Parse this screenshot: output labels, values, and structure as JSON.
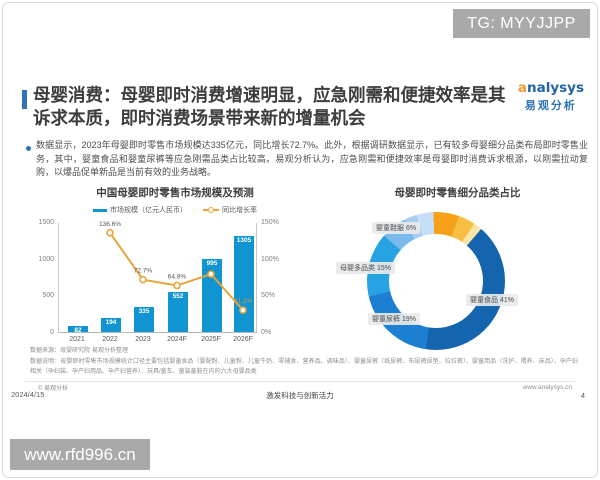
{
  "watermarks": {
    "top": "TG: MYYJJPP",
    "bottom": "www.rfd996.cn"
  },
  "logo": {
    "en": "analysys",
    "cn": "易观分析"
  },
  "slide": {
    "title": "母婴消费：母婴即时消费增速明显，应急刚需和便捷效率是其\n诉求本质，即时消费场景带来新的增量机会",
    "bullet": "数据显示，2023年母婴即时零售市场规模达335亿元，同比增长72.7%。此外，根据调研数据显示，已有较多母婴细分品类布局即时零售业务，其中，婴童食品和婴童尿裤等应急刚需品类占比较高。易观分析认为，应急刚需和便捷效率是母婴即时消费诉求根源，以刚需拉动复购，以爆品促单新品是当前有效的业务战略。"
  },
  "chart_data": [
    {
      "type": "bar",
      "title": "中国母婴即时零售市场规模及预测",
      "categories": [
        "2021",
        "2022",
        "2023",
        "2024F",
        "2025F",
        "2026F"
      ],
      "series": [
        {
          "name": "市场规模（亿元人民币）",
          "kind": "bar",
          "color": "#1095d2",
          "values": [
            82,
            194,
            335,
            552,
            995,
            1305
          ]
        },
        {
          "name": "同比增长率",
          "kind": "line",
          "color": "#e9a43c",
          "values": [
            null,
            136.6,
            72.7,
            64.8,
            80.3,
            31.2
          ],
          "labels": [
            "",
            "136.6%",
            "72.7%",
            "64.8%",
            "",
            "31.2%"
          ],
          "label_colors": [
            "",
            "#555555",
            "#555555",
            "#555555",
            "",
            "#e2953a"
          ]
        }
      ],
      "y_left": {
        "max": 1500,
        "ticks": [
          "1500",
          "1000",
          "500",
          "0"
        ]
      },
      "y_right": {
        "max": 150,
        "ticks": [
          "150%",
          "100%",
          "50%",
          "0%"
        ]
      },
      "legend_position": "top",
      "grid": false
    },
    {
      "type": "pie",
      "title": "母婴即时零售细分品类占比",
      "start_angle_deg": 41,
      "slices": [
        {
          "label": "婴童食品",
          "pct": 41,
          "color": "#1565ae",
          "callout": "婴童食品 41%"
        },
        {
          "label": "婴童尿裤",
          "pct": 19,
          "color": "#1c7fd2",
          "callout": "婴童尿裤 19%"
        },
        {
          "label": "母婴多品类",
          "pct": 15,
          "color": "#27a2e2",
          "callout": "母婴多品类 15%"
        },
        {
          "label": "婴童鞋服",
          "pct": 6,
          "color": "#79b9ec",
          "callout": "婴童鞋服 6%"
        },
        {
          "label": "",
          "pct": 3,
          "color": "#a5cdf2",
          "callout": ""
        },
        {
          "label": "",
          "pct": 4,
          "color": "#c6def6",
          "callout": ""
        },
        {
          "label": "",
          "pct": 6,
          "color": "#f6a118",
          "callout": ""
        },
        {
          "label": "",
          "pct": 4,
          "color": "#f8bf45",
          "callout": ""
        },
        {
          "label": "",
          "pct": 2,
          "color": "#fbe5a9",
          "callout": ""
        }
      ]
    }
  ],
  "footnotes": {
    "source": "数据来源：母婴研究院·易观分析整理",
    "note": "数据说明：母婴即时零售市场规模统计口径主要包括婴童食品（婴配粉、儿童粉、儿童牛奶、零辅食、营养品、调味品）、婴童尿裤（纸尿裤、布尿裤尿垫、拉拉裤）、婴童用品（洗护、喂养、床品）、孕产妇相关（孕妇装、孕产妇用品、孕产妇营养）、玩具/童车、童装童鞋在内的六大母婴品类",
    "copyright": "© 易观分析"
  },
  "footer": {
    "date": "2024/4/15",
    "slogan": "激发科技与创新活力",
    "site": "www.analysys.cn",
    "page": "4"
  }
}
